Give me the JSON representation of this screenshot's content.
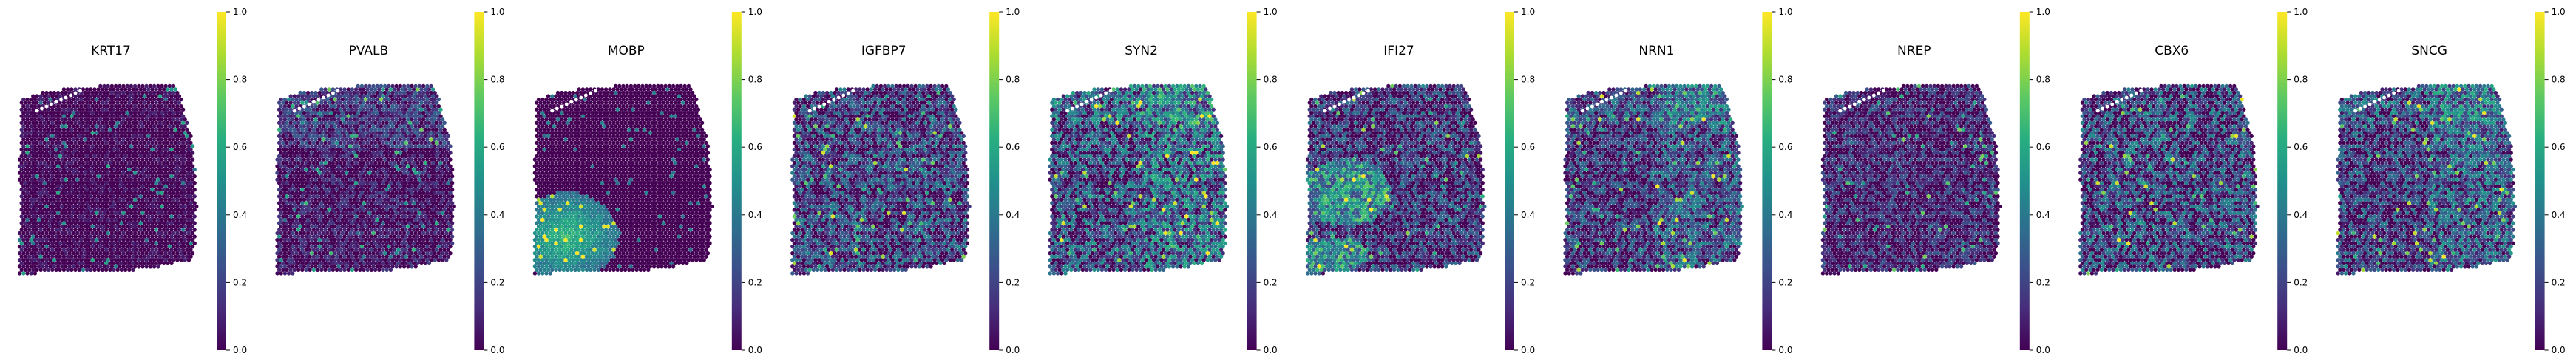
{
  "chart_data": [
    {
      "type": "heatmap",
      "title": "KRT17",
      "colormap": "viridis",
      "colorbar": {
        "ticks": [
          "0.0",
          "0.2",
          "0.4",
          "0.6",
          "0.8",
          "1.0"
        ],
        "range": [
          0,
          1
        ]
      },
      "pattern": "sparse",
      "level": 0.16
    },
    {
      "type": "heatmap",
      "title": "PVALB",
      "colormap": "viridis",
      "colorbar": {
        "ticks": [
          "0.0",
          "0.2",
          "0.4",
          "0.6",
          "0.8",
          "1.0"
        ],
        "range": [
          0,
          1
        ]
      },
      "pattern": "upper",
      "level": 0.22
    },
    {
      "type": "heatmap",
      "title": "MOBP",
      "colormap": "viridis",
      "colorbar": {
        "ticks": [
          "0.0",
          "0.2",
          "0.4",
          "0.6",
          "0.8",
          "1.0"
        ],
        "range": [
          0,
          1
        ]
      },
      "pattern": "lowerleft",
      "level": 0.08
    },
    {
      "type": "heatmap",
      "title": "IGFBP7",
      "colormap": "viridis",
      "colorbar": {
        "ticks": [
          "0.0",
          "0.2",
          "0.4",
          "0.6",
          "0.8",
          "1.0"
        ],
        "range": [
          0,
          1
        ]
      },
      "pattern": "uniform",
      "level": 0.38
    },
    {
      "type": "heatmap",
      "title": "SYN2",
      "colormap": "viridis",
      "colorbar": {
        "ticks": [
          "0.0",
          "0.2",
          "0.4",
          "0.6",
          "0.8",
          "1.0"
        ],
        "range": [
          0,
          1
        ]
      },
      "pattern": "cortex",
      "level": 0.42
    },
    {
      "type": "heatmap",
      "title": "IFI27",
      "colormap": "viridis",
      "colorbar": {
        "ticks": [
          "0.0",
          "0.2",
          "0.4",
          "0.6",
          "0.8",
          "1.0"
        ],
        "range": [
          0,
          1
        ]
      },
      "pattern": "leftband",
      "level": 0.34
    },
    {
      "type": "heatmap",
      "title": "NRN1",
      "colormap": "viridis",
      "colorbar": {
        "ticks": [
          "0.0",
          "0.2",
          "0.4",
          "0.6",
          "0.8",
          "1.0"
        ],
        "range": [
          0,
          1
        ]
      },
      "pattern": "cortex",
      "level": 0.33
    },
    {
      "type": "heatmap",
      "title": "NREP",
      "colormap": "viridis",
      "colorbar": {
        "ticks": [
          "0.0",
          "0.2",
          "0.4",
          "0.6",
          "0.8",
          "1.0"
        ],
        "range": [
          0,
          1
        ]
      },
      "pattern": "uniform",
      "level": 0.28
    },
    {
      "type": "heatmap",
      "title": "CBX6",
      "colormap": "viridis",
      "colorbar": {
        "ticks": [
          "0.0",
          "0.2",
          "0.4",
          "0.6",
          "0.8",
          "1.0"
        ],
        "range": [
          0,
          1
        ]
      },
      "pattern": "uniform",
      "level": 0.4
    },
    {
      "type": "heatmap",
      "title": "SNCG",
      "colormap": "viridis",
      "colorbar": {
        "ticks": [
          "0.0",
          "0.2",
          "0.4",
          "0.6",
          "0.8",
          "1.0"
        ],
        "range": [
          0,
          1
        ]
      },
      "pattern": "cortex",
      "level": 0.36
    }
  ]
}
